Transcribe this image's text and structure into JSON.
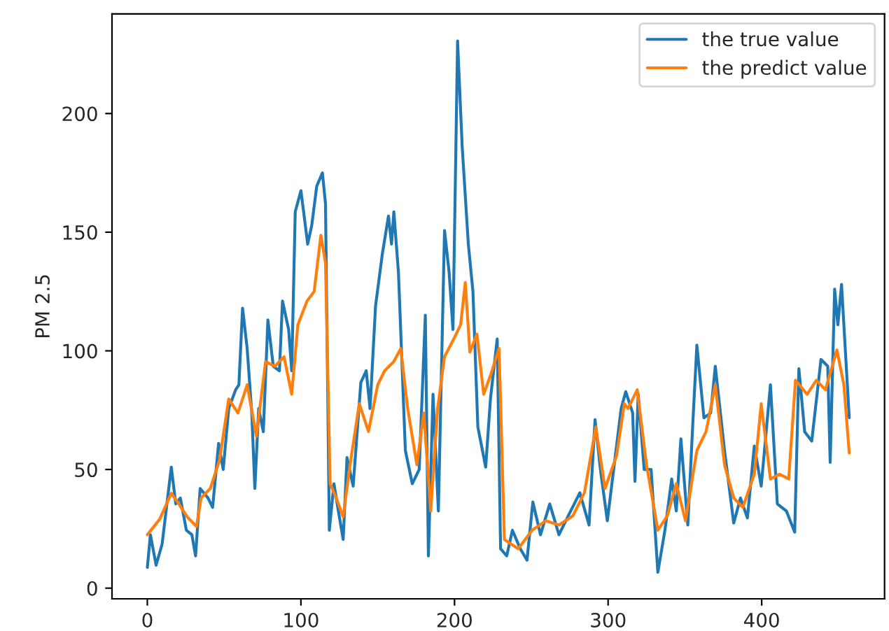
{
  "chart_data": {
    "type": "line",
    "ylabel": "PM 2.5",
    "xlim": [
      -23,
      480
    ],
    "ylim": [
      -4.5,
      242
    ],
    "xticks": [
      0,
      100,
      200,
      300,
      400
    ],
    "yticks": [
      0,
      50,
      100,
      150,
      200
    ],
    "grid": false,
    "legend": "top right",
    "marker": "none",
    "line_style": "solid",
    "series": [
      {
        "name": "the true value",
        "color": "#1f77b4",
        "x": [
          0,
          2,
          5.7,
          9.6,
          15.6,
          18.5,
          21.5,
          25.4,
          29,
          31.4,
          34.4,
          39.5,
          42.5,
          46.4,
          49.4,
          53,
          57.5,
          59.6,
          62,
          65,
          68,
          70,
          72.5,
          75.5,
          78.5,
          82,
          86,
          88,
          92,
          94,
          96.3,
          100,
          104.4,
          107,
          110.3,
          114,
          116,
          118.5,
          121.5,
          124,
          127.5,
          130,
          134,
          139,
          142.5,
          145,
          148.6,
          153,
          157,
          159,
          160.5,
          163.5,
          168,
          172.5,
          177,
          181,
          183,
          186,
          189.5,
          193.5,
          196.5,
          199,
          202,
          205,
          209,
          212,
          215.2,
          220.3,
          223.4,
          227.8,
          230,
          234,
          237.7,
          242.8,
          247.2,
          251,
          256,
          262,
          268,
          274,
          281.6,
          287.6,
          291.5,
          295,
          299.5,
          304,
          308.5,
          311.5,
          316,
          317.5,
          319.6,
          323.5,
          328,
          332.4,
          337,
          341.4,
          344.4,
          347.4,
          351.9,
          355.5,
          357.8,
          362.4,
          366.8,
          369.8,
          375.8,
          381.8,
          386.2,
          390.7,
          395.2,
          399.7,
          405.7,
          410.2,
          416.1,
          421.5,
          424.2,
          428,
          432.6,
          438.6,
          443,
          444.6,
          447.5,
          449.6,
          452,
          457
        ],
        "values": [
          8.7,
          22.5,
          9.7,
          18.5,
          51,
          35.5,
          38,
          24.4,
          22.5,
          13.6,
          42,
          38,
          34,
          61,
          50,
          75.7,
          83.6,
          85.7,
          118,
          101,
          73.8,
          42,
          75.7,
          65.9,
          113,
          93.5,
          91.6,
          121,
          109,
          91.6,
          158.6,
          167.5,
          145,
          152.7,
          169.4,
          175,
          162,
          24.4,
          44,
          34,
          20.5,
          55,
          43,
          86.6,
          91.6,
          75.7,
          119,
          140.8,
          156.8,
          145,
          158.6,
          133,
          58,
          44,
          50,
          115,
          13.6,
          81.7,
          32.5,
          150.7,
          133,
          109,
          230.6,
          186,
          145,
          125,
          67.9,
          51,
          79.8,
          105,
          16.6,
          13.6,
          24.4,
          16.6,
          11.8,
          36.3,
          22.5,
          35.5,
          22.5,
          30.4,
          40.2,
          26.6,
          71,
          50,
          28.4,
          52,
          75.7,
          82.8,
          73.8,
          45,
          81.7,
          50,
          50,
          6.7,
          24.4,
          46,
          32.5,
          62.9,
          26.6,
          73.8,
          102.4,
          71.8,
          73.8,
          93.5,
          58,
          27.4,
          38,
          29.6,
          59.9,
          43,
          85.7,
          35.5,
          32.5,
          23.6,
          92.5,
          65.9,
          62,
          96.4,
          93.5,
          53,
          126,
          111,
          128,
          71.8
        ]
      },
      {
        "name": "the predict value",
        "color": "#ff7f0e",
        "x": [
          0,
          8,
          15.6,
          20,
          26,
          32,
          35,
          41,
          47,
          53,
          59,
          65,
          71,
          77,
          83,
          89,
          94,
          98,
          104,
          108.6,
          113,
          116,
          119,
          123,
          127.5,
          132,
          138,
          144,
          150,
          154.5,
          160.5,
          165,
          169.5,
          175.5,
          180,
          184.5,
          189,
          193.5,
          199.5,
          204,
          207,
          210,
          214.6,
          219,
          223.4,
          229,
          232.5,
          241.5,
          250.5,
          259.5,
          268,
          277,
          284.6,
          292,
          298,
          305.5,
          310.6,
          313,
          319,
          325,
          332.4,
          338.5,
          344.4,
          350.4,
          357.8,
          363.8,
          369.8,
          375.8,
          381.8,
          387.7,
          395.2,
          399.7,
          405.7,
          411.6,
          417.6,
          422,
          429.6,
          435.6,
          441.5,
          449,
          453.5,
          457
        ],
        "values": [
          22.5,
          29,
          40,
          36,
          30,
          26,
          38,
          42,
          54,
          79.7,
          73.8,
          85.7,
          64,
          95.5,
          93.5,
          97.5,
          81.7,
          111,
          121,
          125,
          148.7,
          137,
          44,
          38,
          30,
          52,
          77.7,
          66,
          85.7,
          91.6,
          95.5,
          101,
          75.7,
          52,
          73.8,
          32.5,
          75.7,
          97.5,
          105,
          111,
          128.8,
          99.5,
          107,
          81.7,
          89.6,
          101,
          20.5,
          16.6,
          24.4,
          28.4,
          26.6,
          30.4,
          40.2,
          67.9,
          42,
          55.8,
          77.7,
          75.7,
          83.6,
          52,
          24.4,
          30.4,
          44,
          28.4,
          58,
          66,
          85.7,
          52,
          38,
          34,
          48,
          77.7,
          46,
          48,
          46,
          87.6,
          81.7,
          87.6,
          83.6,
          100.4,
          85.7,
          57
        ]
      }
    ]
  }
}
